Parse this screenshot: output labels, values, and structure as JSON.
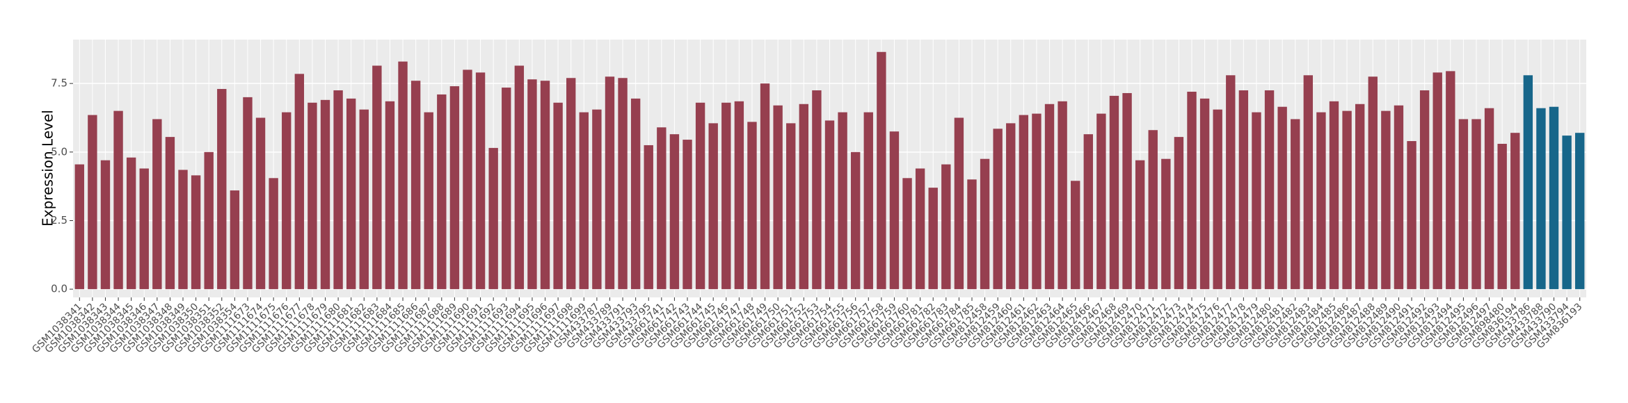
{
  "chart_data": {
    "type": "bar",
    "y_label": "Expression Level",
    "categories": [
      "GSM1038341",
      "GSM1038342",
      "GSM1038343",
      "GSM1038344",
      "GSM1038345",
      "GSM1038346",
      "GSM1038347",
      "GSM1038348",
      "GSM1038349",
      "GSM1038350",
      "GSM1038351",
      "GSM1038352",
      "GSM1038354",
      "GSM1111673",
      "GSM1111674",
      "GSM1111675",
      "GSM1111676",
      "GSM1111677",
      "GSM1111678",
      "GSM1111679",
      "GSM1111680",
      "GSM1111681",
      "GSM1111682",
      "GSM1111683",
      "GSM1111684",
      "GSM1111685",
      "GSM1111686",
      "GSM1111687",
      "GSM1111688",
      "GSM1111689",
      "GSM1111690",
      "GSM1111691",
      "GSM1111692",
      "GSM1111693",
      "GSM1111694",
      "GSM1111695",
      "GSM1111696",
      "GSM1111697",
      "GSM1111698",
      "GSM1111699",
      "GSM433787",
      "GSM433789",
      "GSM433791",
      "GSM433793",
      "GSM433795",
      "GSM661741",
      "GSM661742",
      "GSM661743",
      "GSM661744",
      "GSM661745",
      "GSM661746",
      "GSM661747",
      "GSM661748",
      "GSM661749",
      "GSM661750",
      "GSM661751",
      "GSM661752",
      "GSM661753",
      "GSM661754",
      "GSM661755",
      "GSM661756",
      "GSM661757",
      "GSM661758",
      "GSM661759",
      "GSM661760",
      "GSM661781",
      "GSM661782",
      "GSM661783",
      "GSM661784",
      "GSM661785",
      "GSM812458",
      "GSM812459",
      "GSM812460",
      "GSM812461",
      "GSM812462",
      "GSM812463",
      "GSM812464",
      "GSM812465",
      "GSM812466",
      "GSM812467",
      "GSM812468",
      "GSM812469",
      "GSM812470",
      "GSM812471",
      "GSM812472",
      "GSM812473",
      "GSM812474",
      "GSM812475",
      "GSM812476",
      "GSM812477",
      "GSM812478",
      "GSM812479",
      "GSM812480",
      "GSM812481",
      "GSM812482",
      "GSM812483",
      "GSM812484",
      "GSM812485",
      "GSM812486",
      "GSM812487",
      "GSM812488",
      "GSM812489",
      "GSM812490",
      "GSM812491",
      "GSM812492",
      "GSM812493",
      "GSM812494",
      "GSM812495",
      "GSM812496",
      "GSM812497",
      "GSM898480",
      "GSM836194",
      "GSM433786",
      "GSM433788",
      "GSM433790",
      "GSM433794",
      "GSM836193"
    ],
    "values": [
      4.55,
      6.35,
      4.7,
      6.5,
      4.8,
      4.4,
      6.2,
      5.55,
      4.35,
      4.15,
      5.0,
      7.3,
      3.6,
      7.0,
      6.25,
      4.05,
      6.45,
      7.85,
      6.8,
      6.9,
      7.25,
      6.95,
      6.55,
      8.15,
      6.85,
      8.3,
      7.6,
      6.45,
      7.1,
      7.4,
      8.0,
      7.9,
      5.15,
      7.35,
      8.15,
      7.65,
      7.6,
      6.8,
      7.7,
      6.45,
      6.55,
      7.75,
      7.7,
      6.95,
      5.25,
      5.9,
      5.65,
      5.45,
      6.8,
      6.05,
      6.8,
      6.85,
      6.1,
      7.5,
      6.7,
      6.05,
      6.75,
      7.25,
      6.15,
      6.45,
      5.0,
      6.45,
      8.65,
      5.75,
      4.05,
      4.4,
      3.7,
      4.55,
      6.25,
      4.0,
      4.75,
      5.85,
      6.05,
      6.35,
      6.4,
      6.75,
      6.85,
      3.95,
      5.65,
      6.4,
      7.05,
      7.15,
      4.7,
      5.8,
      4.75,
      5.55,
      7.2,
      6.95,
      6.55,
      7.8,
      7.25,
      6.45,
      7.25,
      6.65,
      6.2,
      7.8,
      6.45,
      6.85,
      6.5,
      6.75,
      7.75,
      6.5,
      6.7,
      5.4,
      7.25,
      7.9,
      7.95,
      6.2,
      6.2,
      6.6,
      5.3,
      5.7,
      7.8,
      6.6,
      6.65,
      5.6,
      5.7
    ],
    "colors": [
      "#963f4f",
      "#963f4f",
      "#963f4f",
      "#963f4f",
      "#963f4f",
      "#963f4f",
      "#963f4f",
      "#963f4f",
      "#963f4f",
      "#963f4f",
      "#963f4f",
      "#963f4f",
      "#963f4f",
      "#963f4f",
      "#963f4f",
      "#963f4f",
      "#963f4f",
      "#963f4f",
      "#963f4f",
      "#963f4f",
      "#963f4f",
      "#963f4f",
      "#963f4f",
      "#963f4f",
      "#963f4f",
      "#963f4f",
      "#963f4f",
      "#963f4f",
      "#963f4f",
      "#963f4f",
      "#963f4f",
      "#963f4f",
      "#963f4f",
      "#963f4f",
      "#963f4f",
      "#963f4f",
      "#963f4f",
      "#963f4f",
      "#963f4f",
      "#963f4f",
      "#963f4f",
      "#963f4f",
      "#963f4f",
      "#963f4f",
      "#963f4f",
      "#963f4f",
      "#963f4f",
      "#963f4f",
      "#963f4f",
      "#963f4f",
      "#963f4f",
      "#963f4f",
      "#963f4f",
      "#963f4f",
      "#963f4f",
      "#963f4f",
      "#963f4f",
      "#963f4f",
      "#963f4f",
      "#963f4f",
      "#963f4f",
      "#963f4f",
      "#963f4f",
      "#963f4f",
      "#963f4f",
      "#963f4f",
      "#963f4f",
      "#963f4f",
      "#963f4f",
      "#963f4f",
      "#963f4f",
      "#963f4f",
      "#963f4f",
      "#963f4f",
      "#963f4f",
      "#963f4f",
      "#963f4f",
      "#963f4f",
      "#963f4f",
      "#963f4f",
      "#963f4f",
      "#963f4f",
      "#963f4f",
      "#963f4f",
      "#963f4f",
      "#963f4f",
      "#963f4f",
      "#963f4f",
      "#963f4f",
      "#963f4f",
      "#963f4f",
      "#963f4f",
      "#963f4f",
      "#963f4f",
      "#963f4f",
      "#963f4f",
      "#963f4f",
      "#963f4f",
      "#963f4f",
      "#963f4f",
      "#963f4f",
      "#963f4f",
      "#963f4f",
      "#963f4f",
      "#963f4f",
      "#963f4f",
      "#963f4f",
      "#963f4f",
      "#963f4f",
      "#963f4f",
      "#963f4f",
      "#963f4f",
      "#17668a",
      "#17668a",
      "#17668a",
      "#17668a",
      "#17668a"
    ],
    "ylim": [
      -0.3,
      9.1
    ],
    "yticks": [
      {
        "value": 0,
        "label": "0.0"
      },
      {
        "value": 2.5,
        "label": "2.5"
      },
      {
        "value": 5,
        "label": "5.0"
      },
      {
        "value": 7.5,
        "label": "7.5"
      }
    ],
    "grid": true
  }
}
